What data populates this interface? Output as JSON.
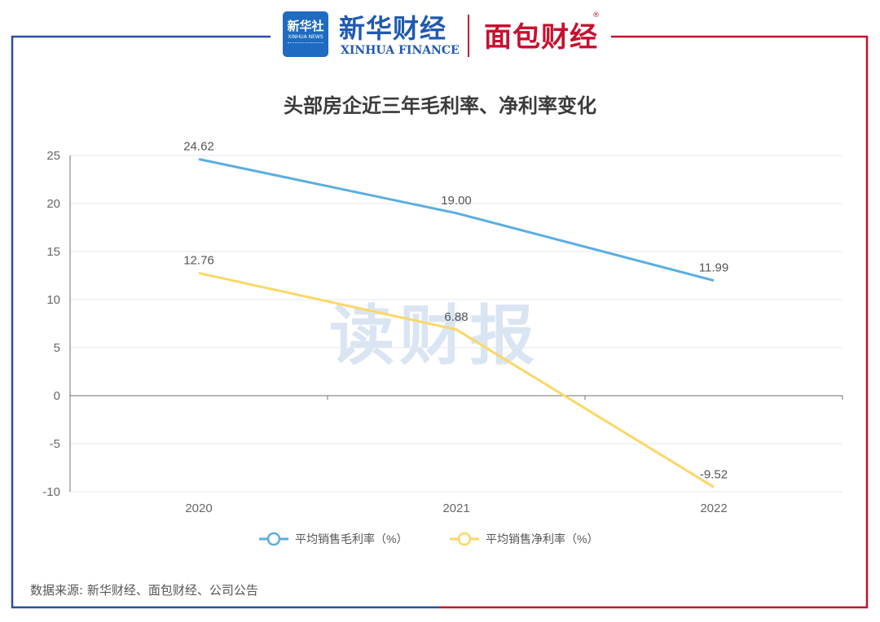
{
  "header": {
    "logo_text": "新华社",
    "logo_subtext": "XINHUA NEWS",
    "brand_cn": "新华财经",
    "brand_en": "XINHUA FINANCE",
    "brand2": "面包财经",
    "brand2_mark": "®"
  },
  "watermark": "读财报",
  "footer": {
    "source": "数据来源: 新华财经、面包财经、公司公告"
  },
  "colors": {
    "series_gross": "#5aaee0",
    "series_net": "#fcd766",
    "frame_left": "#2a4f9c",
    "frame_right": "#c8102e"
  },
  "chart_data": {
    "type": "line",
    "title": "头部房企近三年毛利率、净利率变化",
    "categories": [
      "2020",
      "2021",
      "2022"
    ],
    "ylim": [
      -10,
      25
    ],
    "yticks": [
      "25",
      "20",
      "15",
      "10",
      "5",
      "0",
      "-5",
      "-10"
    ],
    "grid": true,
    "legend_position": "bottom",
    "series": [
      {
        "name": "平均销售毛利率（%）",
        "values": [
          24.62,
          19.0,
          11.99
        ],
        "labels": [
          "24.62",
          "19.00",
          "11.99"
        ],
        "color": "#5aaee0"
      },
      {
        "name": "平均销售净利率（%）",
        "values": [
          12.76,
          6.88,
          -9.52
        ],
        "labels": [
          "12.76",
          "6.88",
          "-9.52"
        ],
        "color": "#fcd766"
      }
    ]
  }
}
